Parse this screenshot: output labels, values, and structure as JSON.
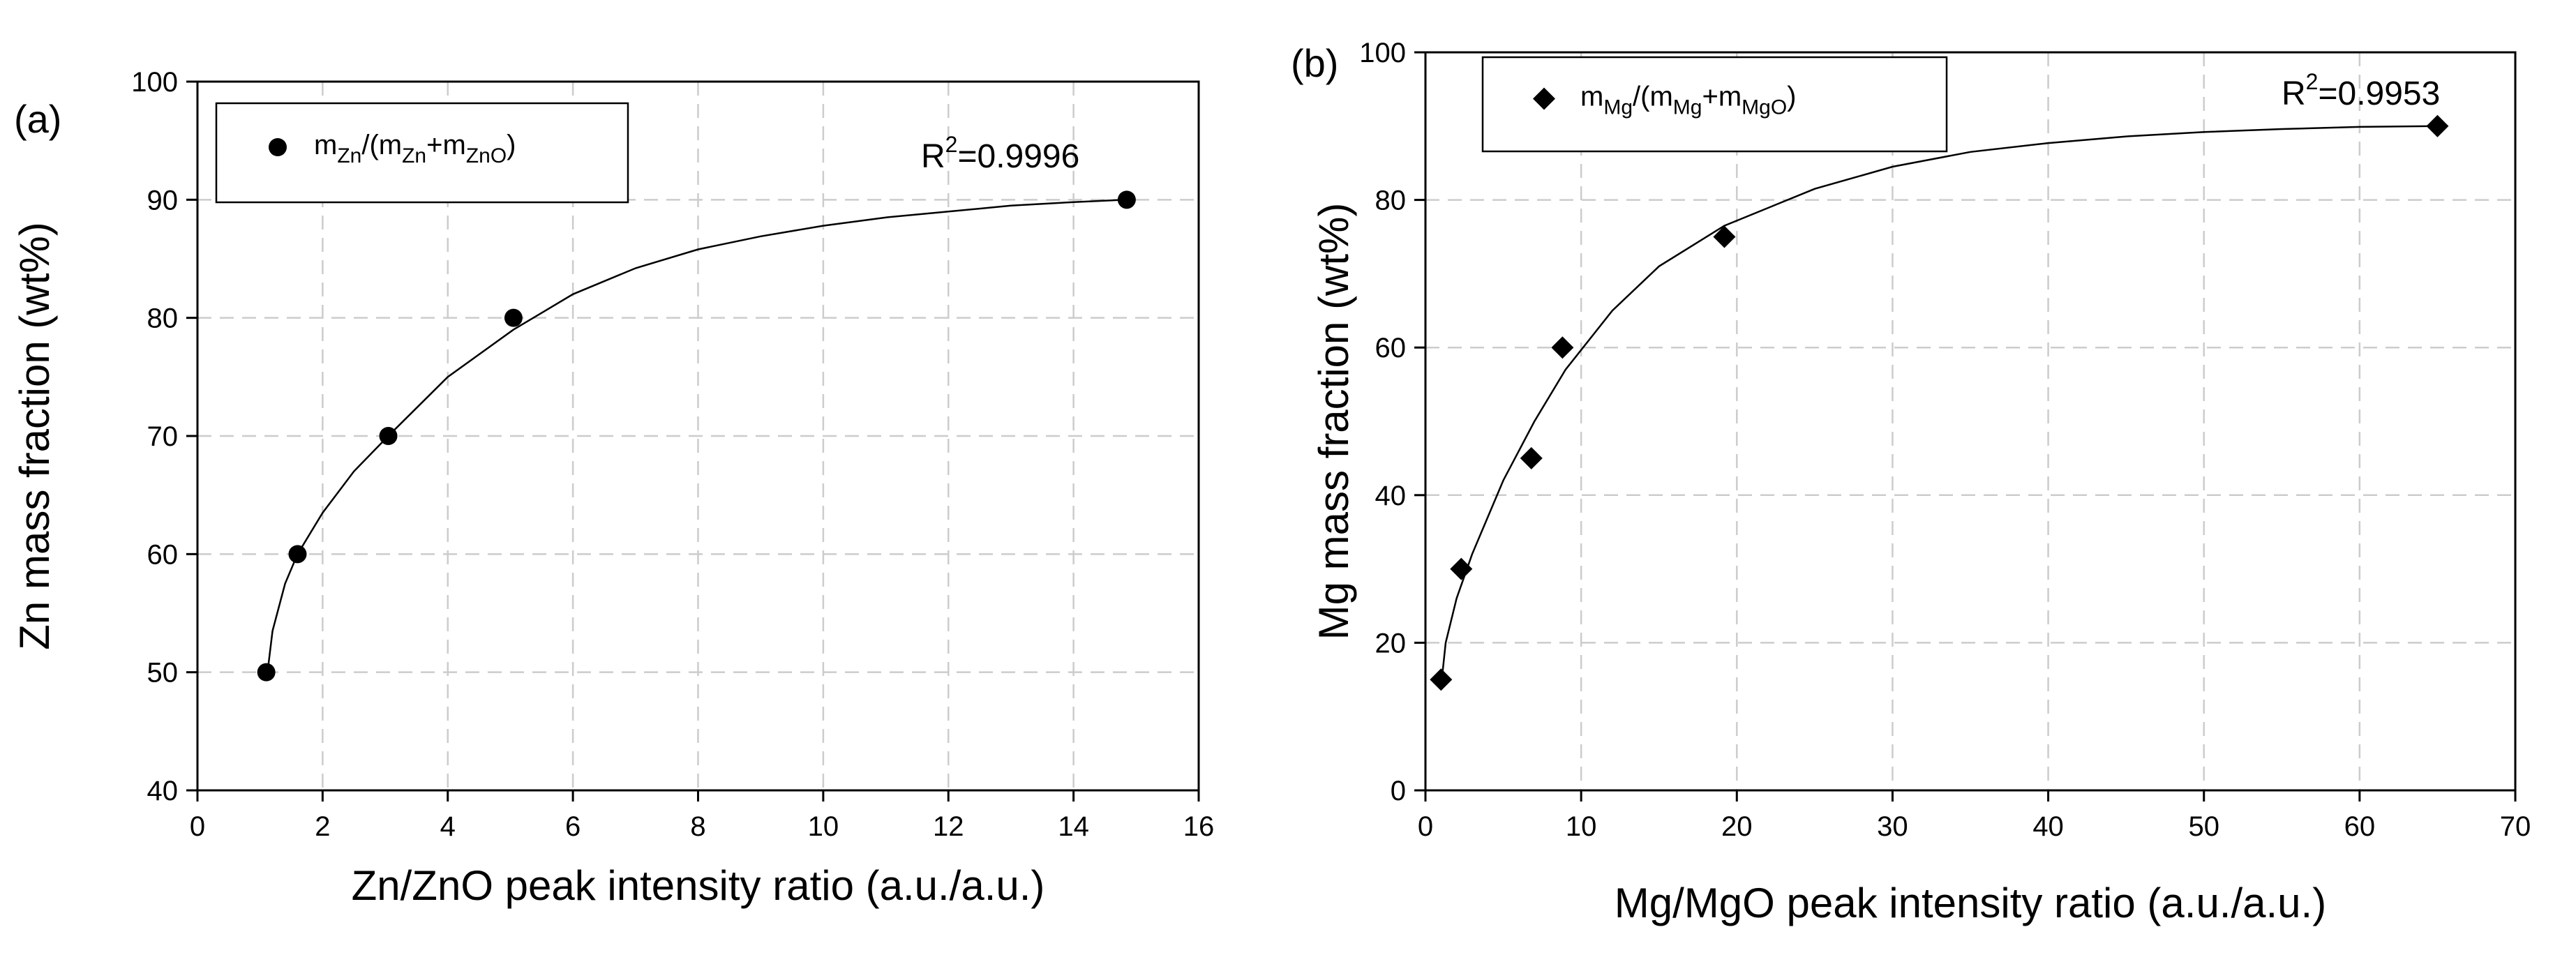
{
  "chart_data": [
    {
      "type": "scatter",
      "panel_label": "(a)",
      "xlabel": "Zn/ZnO peak intensity ratio (a.u./a.u.)",
      "ylabel": "Zn mass fraction (wt%)",
      "xlim": [
        0,
        16
      ],
      "ylim": [
        40,
        100
      ],
      "xticks": [
        0,
        2,
        4,
        6,
        8,
        10,
        12,
        14,
        16
      ],
      "yticks": [
        40,
        50,
        60,
        70,
        80,
        90,
        100
      ],
      "grid": true,
      "marker": "circle",
      "legend": {
        "position": "top-left",
        "parts": [
          {
            "t": "m",
            "sub": false
          },
          {
            "t": "Zn",
            "sub": true
          },
          {
            "t": "/(m",
            "sub": false
          },
          {
            "t": "Zn",
            "sub": true
          },
          {
            "t": "+m",
            "sub": false
          },
          {
            "t": "ZnO",
            "sub": true
          },
          {
            "t": ")",
            "sub": false
          }
        ]
      },
      "r2": {
        "base": "R",
        "sup": "2",
        "value": "=0.9996"
      },
      "points": [
        {
          "x": 1.1,
          "y": 50
        },
        {
          "x": 1.6,
          "y": 60
        },
        {
          "x": 3.05,
          "y": 70
        },
        {
          "x": 5.05,
          "y": 80
        },
        {
          "x": 14.85,
          "y": 90
        }
      ],
      "fit": [
        {
          "x": 1.12,
          "y": 50
        },
        {
          "x": 1.2,
          "y": 53.5
        },
        {
          "x": 1.4,
          "y": 57.5
        },
        {
          "x": 1.6,
          "y": 60
        },
        {
          "x": 2.0,
          "y": 63.5
        },
        {
          "x": 2.5,
          "y": 67
        },
        {
          "x": 3.05,
          "y": 70
        },
        {
          "x": 4.0,
          "y": 75
        },
        {
          "x": 5.05,
          "y": 79
        },
        {
          "x": 6.0,
          "y": 82
        },
        {
          "x": 7.0,
          "y": 84.2
        },
        {
          "x": 8.0,
          "y": 85.8
        },
        {
          "x": 9.0,
          "y": 86.9
        },
        {
          "x": 10.0,
          "y": 87.8
        },
        {
          "x": 11.0,
          "y": 88.5
        },
        {
          "x": 12.0,
          "y": 89.0
        },
        {
          "x": 13.0,
          "y": 89.5
        },
        {
          "x": 14.0,
          "y": 89.8
        },
        {
          "x": 14.85,
          "y": 90.0
        }
      ]
    },
    {
      "type": "scatter",
      "panel_label": "(b)",
      "xlabel": "Mg/MgO peak intensity ratio (a.u./a.u.)",
      "ylabel": "Mg mass fraction (wt%)",
      "xlim": [
        0,
        70
      ],
      "ylim": [
        0,
        100
      ],
      "xticks": [
        0,
        10,
        20,
        30,
        40,
        50,
        60,
        70
      ],
      "yticks": [
        0,
        20,
        40,
        60,
        80,
        100
      ],
      "grid": true,
      "marker": "diamond",
      "legend": {
        "position": "top-left",
        "parts": [
          {
            "t": "m",
            "sub": false
          },
          {
            "t": "Mg",
            "sub": true
          },
          {
            "t": "/(m",
            "sub": false
          },
          {
            "t": "Mg",
            "sub": true
          },
          {
            "t": "+m",
            "sub": false
          },
          {
            "t": "MgO",
            "sub": true
          },
          {
            "t": ")",
            "sub": false
          }
        ]
      },
      "r2": {
        "base": "R",
        "sup": "2",
        "value": "=0.9953"
      },
      "points": [
        {
          "x": 1.0,
          "y": 15
        },
        {
          "x": 2.3,
          "y": 30
        },
        {
          "x": 6.8,
          "y": 45
        },
        {
          "x": 8.8,
          "y": 60
        },
        {
          "x": 19.2,
          "y": 75
        },
        {
          "x": 65.0,
          "y": 90
        }
      ],
      "fit": [
        {
          "x": 1.05,
          "y": 15
        },
        {
          "x": 1.3,
          "y": 20
        },
        {
          "x": 2.0,
          "y": 26
        },
        {
          "x": 3.0,
          "y": 32
        },
        {
          "x": 5.0,
          "y": 42
        },
        {
          "x": 7.0,
          "y": 50
        },
        {
          "x": 9.0,
          "y": 57
        },
        {
          "x": 12.0,
          "y": 65
        },
        {
          "x": 15.0,
          "y": 71
        },
        {
          "x": 19.2,
          "y": 76.5
        },
        {
          "x": 25.0,
          "y": 81.5
        },
        {
          "x": 30.0,
          "y": 84.5
        },
        {
          "x": 35.0,
          "y": 86.5
        },
        {
          "x": 40.0,
          "y": 87.7
        },
        {
          "x": 45.0,
          "y": 88.6
        },
        {
          "x": 50.0,
          "y": 89.2
        },
        {
          "x": 55.0,
          "y": 89.6
        },
        {
          "x": 60.0,
          "y": 89.9
        },
        {
          "x": 65.0,
          "y": 90.0
        }
      ]
    }
  ]
}
